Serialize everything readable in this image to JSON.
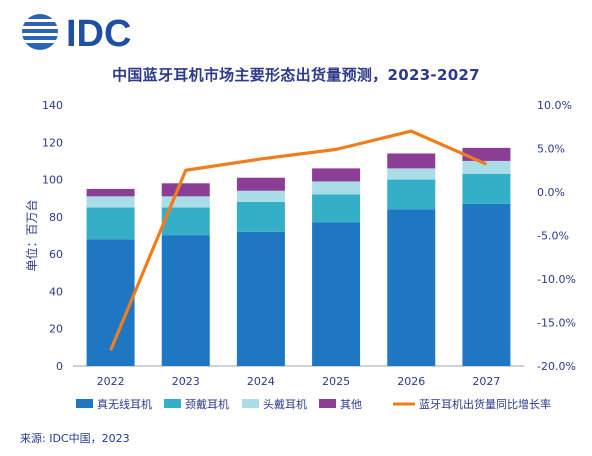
{
  "logo": {
    "text": "IDC"
  },
  "source_note": "来源: IDC中国，2023",
  "chart_data": {
    "type": "bar",
    "title": "中国蓝牙耳机市场主要形态出货量预测，2023-2027",
    "categories": [
      "2022",
      "2023",
      "2024",
      "2025",
      "2026",
      "2027"
    ],
    "ylabel": "单位：百万台",
    "ylim": [
      0,
      140
    ],
    "yticks": [
      0,
      20,
      40,
      60,
      80,
      100,
      120,
      140
    ],
    "y2lim": [
      -0.2,
      0.1
    ],
    "y2ticks": [
      "10.0%",
      "5.0%",
      "0.0%",
      "-5.0%",
      "-10.0%",
      "-15.0%",
      "-20.0%"
    ],
    "stacked": true,
    "series": [
      {
        "name": "真无线耳机",
        "color": "#1f77c4",
        "values": [
          68,
          70,
          72,
          77,
          84,
          87
        ]
      },
      {
        "name": "颈戴耳机",
        "color": "#35aec8",
        "values": [
          17,
          15,
          16,
          15,
          16,
          16
        ]
      },
      {
        "name": "头戴耳机",
        "color": "#a9dde8",
        "values": [
          6,
          6,
          6,
          7,
          6,
          7
        ]
      },
      {
        "name": "其他",
        "color": "#8c3d96",
        "values": [
          4,
          7,
          7,
          7,
          8,
          7
        ]
      }
    ],
    "line_series": {
      "name": "蓝牙耳机出货量同比增长率",
      "color": "#f07d1a",
      "axis": "right",
      "values": [
        -0.182,
        0.025,
        0.038,
        0.049,
        0.07,
        0.032
      ]
    },
    "legend_position": "bottom",
    "grid": false
  }
}
